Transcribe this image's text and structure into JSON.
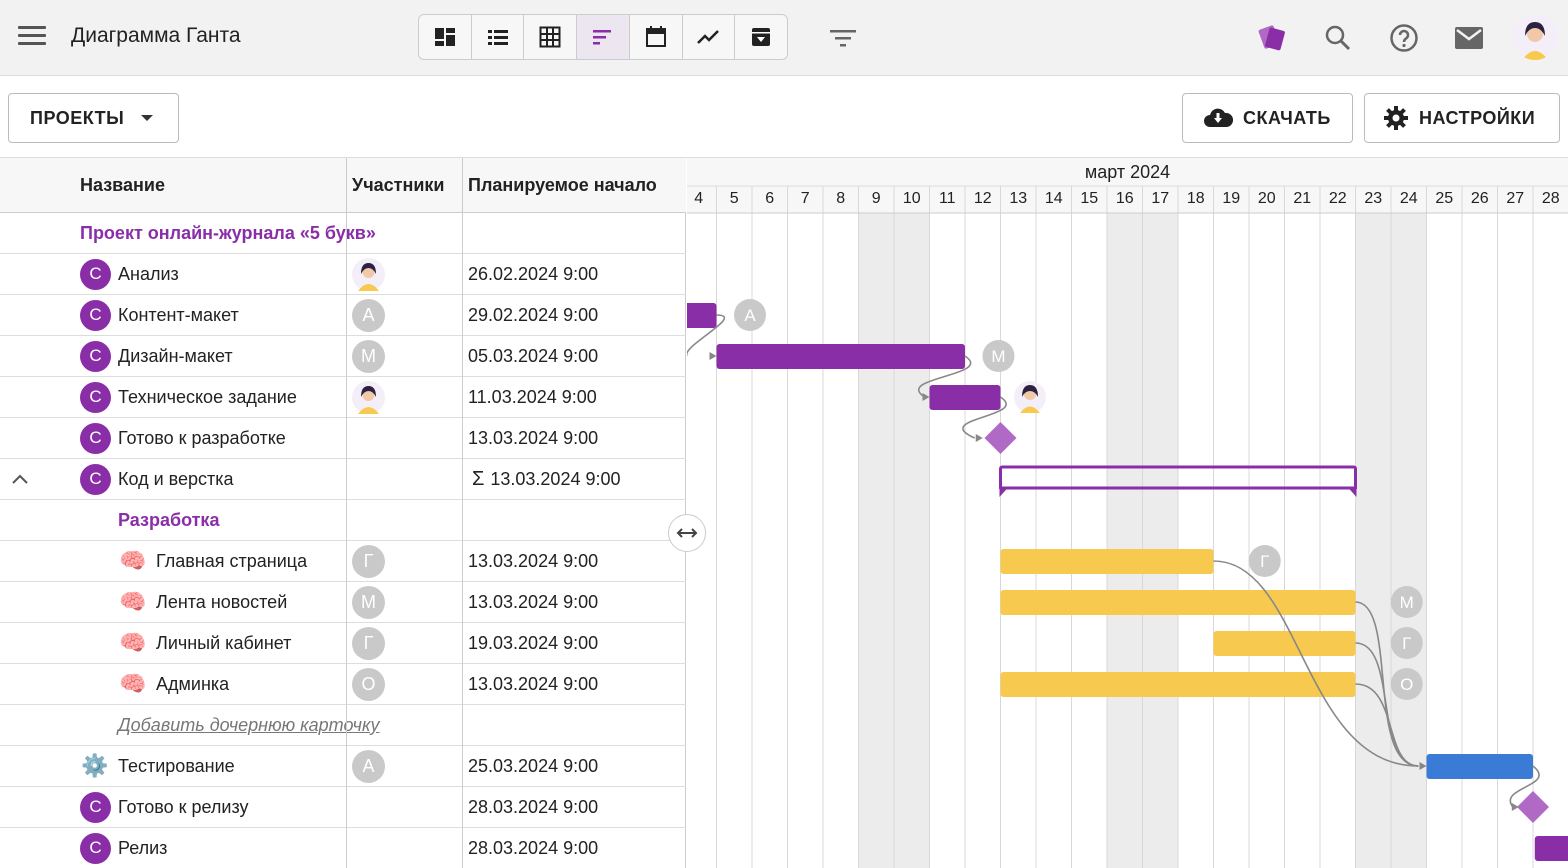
{
  "header": {
    "title": "Диаграмма Ганта",
    "views": [
      {
        "name": "board-view-icon"
      },
      {
        "name": "list-view-icon"
      },
      {
        "name": "table-view-icon"
      },
      {
        "name": "gantt-view-icon",
        "active": true
      },
      {
        "name": "calendar-view-icon"
      },
      {
        "name": "chart-view-icon"
      },
      {
        "name": "archive-view-icon"
      }
    ],
    "icons": [
      "filter-icon",
      "cards-logo-icon",
      "search-icon",
      "help-icon",
      "mail-icon"
    ]
  },
  "toolbar": {
    "projects_label": "ПРОЕКТЫ",
    "download_label": "СКАЧАТЬ",
    "settings_label": "НАСТРОЙКИ"
  },
  "table": {
    "columns": [
      "Название",
      "Участники",
      "Планируемое начало"
    ],
    "group_title": "Проект онлайн-журнала «5 букв»",
    "rows": [
      {
        "icon": "C",
        "name": "Анализ",
        "member": "avatar",
        "start": "26.02.2024 9:00"
      },
      {
        "icon": "C",
        "name": "Контент-макет",
        "member": "А",
        "start": "29.02.2024 9:00"
      },
      {
        "icon": "C",
        "name": "Дизайн-макет",
        "member": "М",
        "start": "05.03.2024 9:00"
      },
      {
        "icon": "C",
        "name": "Техническое задание",
        "member": "avatar",
        "start": "11.03.2024 9:00"
      },
      {
        "icon": "C",
        "name": "Готово к разработке",
        "member": "",
        "start": "13.03.2024 9:00"
      },
      {
        "icon": "C",
        "name": "Код и верстка",
        "member": "",
        "start": "13.03.2024 9:00",
        "sum": "Σ"
      }
    ],
    "subgroup_title": "Разработка",
    "subrows": [
      {
        "icon": "🧠",
        "name": "Главная страница",
        "member": "Г",
        "start": "13.03.2024 9:00"
      },
      {
        "icon": "🧠",
        "name": "Лента новостей",
        "member": "М",
        "start": "13.03.2024 9:00"
      },
      {
        "icon": "🧠",
        "name": "Личный кабинет",
        "member": "Г",
        "start": "19.03.2024 9:00"
      },
      {
        "icon": "🧠",
        "name": "Админка",
        "member": "О",
        "start": "13.03.2024 9:00"
      }
    ],
    "add_child_label": "Добавить дочернюю карточку",
    "tail_rows": [
      {
        "icon": "⚙️",
        "name": "Тестирование",
        "member": "А",
        "start": "25.03.2024 9:00"
      },
      {
        "icon": "C",
        "name": "Готово к релизу",
        "member": "",
        "start": "28.03.2024 9:00"
      },
      {
        "icon": "C",
        "name": "Релиз",
        "member": "",
        "start": "28.03.2024 9:00"
      }
    ]
  },
  "gantt": {
    "month": "март 2024",
    "days": [
      "4",
      "5",
      "6",
      "7",
      "8",
      "9",
      "10",
      "11",
      "12",
      "13",
      "14",
      "15",
      "16",
      "17",
      "18",
      "19",
      "20",
      "21",
      "22",
      "23",
      "24",
      "25",
      "26",
      "27",
      "28"
    ],
    "weekend_days": [
      "9",
      "10",
      "16",
      "17",
      "23",
      "24"
    ],
    "colors": {
      "purple": "#8a2ea8",
      "yellow": "#f7c94f",
      "blue": "#3a7bd5",
      "milestone": "#b06ac6"
    },
    "member_markers": [
      "А",
      "М",
      "Г",
      "М",
      "Г",
      "О"
    ]
  }
}
